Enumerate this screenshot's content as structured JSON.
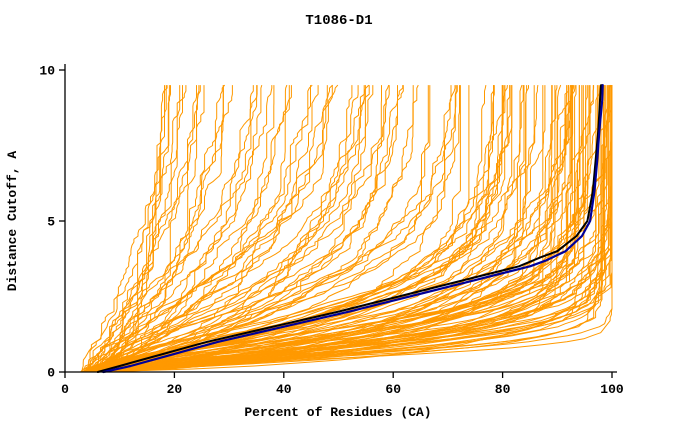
{
  "title": "T1086-D1",
  "chart_data": {
    "type": "line",
    "title": "T1086-D1",
    "xlabel": "Percent of Residues (CA)",
    "ylabel": "Distance Cutoff, A",
    "xlim": [
      0,
      100
    ],
    "ylim": [
      0,
      10
    ],
    "xticks": [
      0,
      20,
      40,
      60,
      80,
      100
    ],
    "yticks": [
      0,
      5,
      10
    ],
    "grid": false,
    "legend": "none",
    "background": "#ffffff",
    "axis_color": "#000000",
    "ensemble": {
      "name": "prediction-curves",
      "description": "bundle of per-model cumulative distance-cutoff curves",
      "color": "#ff9900",
      "count": 140,
      "seed": 12,
      "stroke_width": 1,
      "y_max": 9.5,
      "x_start_min": 3,
      "x_start_max": 9,
      "final_min": 18,
      "final_max": 100
    },
    "highlight_series": [
      {
        "name": "model-black",
        "color": "#000000",
        "stroke_width": 2,
        "points": [
          [
            6,
            0
          ],
          [
            10,
            0.2
          ],
          [
            14,
            0.4
          ],
          [
            18,
            0.6
          ],
          [
            22,
            0.8
          ],
          [
            26,
            1
          ],
          [
            38,
            1.5
          ],
          [
            50,
            2
          ],
          [
            61,
            2.5
          ],
          [
            72,
            3
          ],
          [
            83,
            3.5
          ],
          [
            87,
            3.8
          ],
          [
            90,
            4
          ],
          [
            93.5,
            4.5
          ],
          [
            95.5,
            5
          ],
          [
            96.5,
            6
          ],
          [
            97,
            7
          ],
          [
            97.5,
            8
          ],
          [
            97.8,
            9
          ],
          [
            98,
            9.5
          ]
        ]
      },
      {
        "name": "model-navy",
        "color": "#000099",
        "stroke_width": 2.2,
        "points": [
          [
            7,
            0
          ],
          [
            12,
            0.2
          ],
          [
            16,
            0.4
          ],
          [
            20,
            0.6
          ],
          [
            24,
            0.8
          ],
          [
            28,
            1
          ],
          [
            40,
            1.5
          ],
          [
            52,
            2
          ],
          [
            63,
            2.5
          ],
          [
            74,
            3
          ],
          [
            85,
            3.5
          ],
          [
            88,
            3.7
          ],
          [
            91.5,
            4
          ],
          [
            94.5,
            4.5
          ],
          [
            96,
            5
          ],
          [
            96.8,
            6
          ],
          [
            97.3,
            7
          ],
          [
            97.7,
            8
          ],
          [
            98.2,
            9
          ],
          [
            98.3,
            9.5
          ]
        ]
      }
    ]
  }
}
